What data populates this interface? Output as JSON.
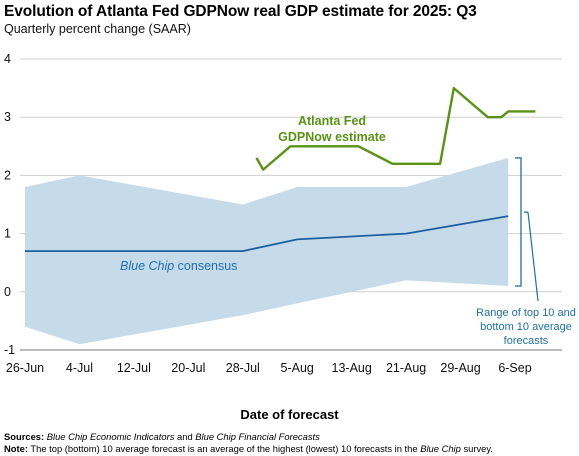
{
  "chart_data": {
    "type": "line",
    "title": "Evolution of Atlanta Fed GDPNow real GDP estimate for 2025: Q3",
    "subtitle": "Quarterly percent change (SAAR)",
    "xlabel": "Date of forecast",
    "ylabel": "",
    "ylim": [
      -1,
      4
    ],
    "yticks": [
      "-1",
      "0",
      "1",
      "2",
      "3",
      "4"
    ],
    "xlim": [
      "2025-06-26",
      "2025-09-13"
    ],
    "xticks": [
      {
        "date": "2025-06-26",
        "label": "26-Jun"
      },
      {
        "date": "2025-07-04",
        "label": "4-Jul"
      },
      {
        "date": "2025-07-12",
        "label": "12-Jul"
      },
      {
        "date": "2025-07-20",
        "label": "20-Jul"
      },
      {
        "date": "2025-07-28",
        "label": "28-Jul"
      },
      {
        "date": "2025-08-05",
        "label": "5-Aug"
      },
      {
        "date": "2025-08-13",
        "label": "13-Aug"
      },
      {
        "date": "2025-08-21",
        "label": "21-Aug"
      },
      {
        "date": "2025-08-29",
        "label": "29-Aug"
      },
      {
        "date": "2025-09-06",
        "label": "6-Sep"
      }
    ],
    "grid": "horizontal",
    "series": [
      {
        "name": "Atlanta Fed GDPNow estimate",
        "color": "#5a9216",
        "points": [
          {
            "x": "2025-07-30",
            "y": 2.3
          },
          {
            "x": "2025-07-31",
            "y": 2.1
          },
          {
            "x": "2025-08-04",
            "y": 2.5
          },
          {
            "x": "2025-08-08",
            "y": 2.5
          },
          {
            "x": "2025-08-14",
            "y": 2.5
          },
          {
            "x": "2025-08-19",
            "y": 2.2
          },
          {
            "x": "2025-08-26",
            "y": 2.2
          },
          {
            "x": "2025-08-28",
            "y": 3.5
          },
          {
            "x": "2025-09-02",
            "y": 3.0
          },
          {
            "x": "2025-09-04",
            "y": 3.0
          },
          {
            "x": "2025-09-05",
            "y": 3.1
          },
          {
            "x": "2025-09-09",
            "y": 3.1
          }
        ]
      },
      {
        "name": "Blue Chip consensus",
        "color": "#1f5fa0",
        "points": [
          {
            "x": "2025-06-26",
            "y": 0.7
          },
          {
            "x": "2025-07-04",
            "y": 0.7
          },
          {
            "x": "2025-07-28",
            "y": 0.7
          },
          {
            "x": "2025-08-05",
            "y": 0.9
          },
          {
            "x": "2025-08-21",
            "y": 1.0
          },
          {
            "x": "2025-09-05",
            "y": 1.3
          }
        ]
      },
      {
        "name": "Range of top 10 and bottom 10 average forecasts",
        "type": "area",
        "color": "#c6dbea",
        "upper": [
          {
            "x": "2025-06-26",
            "y": 1.8
          },
          {
            "x": "2025-07-04",
            "y": 2.0
          },
          {
            "x": "2025-07-28",
            "y": 1.5
          },
          {
            "x": "2025-08-05",
            "y": 1.8
          },
          {
            "x": "2025-08-21",
            "y": 1.8
          },
          {
            "x": "2025-09-05",
            "y": 2.3
          }
        ],
        "lower": [
          {
            "x": "2025-06-26",
            "y": -0.6
          },
          {
            "x": "2025-07-04",
            "y": -0.9
          },
          {
            "x": "2025-07-28",
            "y": -0.4
          },
          {
            "x": "2025-08-05",
            "y": -0.2
          },
          {
            "x": "2025-08-21",
            "y": 0.2
          },
          {
            "x": "2025-09-05",
            "y": 0.1
          }
        ]
      }
    ],
    "annotations": {
      "gdpnow_line1": "Atlanta Fed",
      "gdpnow_line2": "GDPNow estimate",
      "bluechip_italic": "Blue Chip",
      "bluechip_rest": " consensus",
      "range_line1": "Range of top 10 and",
      "range_line2": "bottom 10 average",
      "range_line3": "forecasts"
    }
  },
  "footer": {
    "sources_label": "Sources:",
    "sources_text_1": "Blue Chip Economic Indicators",
    "sources_text_2": " and ",
    "sources_text_3": "Blue Chip Financial Forecasts",
    "note_label": "Note:",
    "note_text_1": " The top (bottom) 10 average forecast is an average of the highest (lowest) 10 forecasts in the ",
    "note_text_2": "Blue Chip",
    "note_text_3": " survey."
  }
}
